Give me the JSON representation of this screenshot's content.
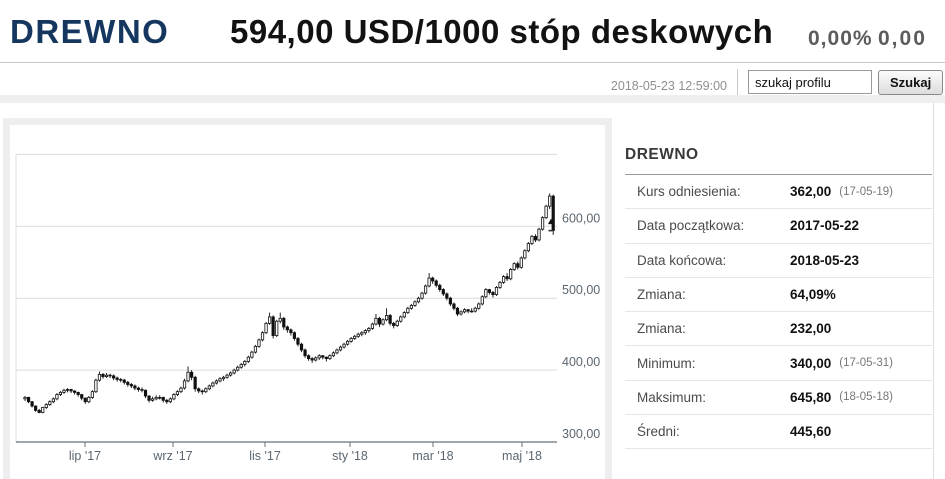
{
  "header": {
    "symbol": "DREWNO",
    "price_line": "594,00 USD/1000 stóp deskowych",
    "change_percent": "0,00%",
    "change_value": "0,00"
  },
  "subheader": {
    "timestamp": "2018-05-23 12:59:00",
    "search_value": "szukaj profilu",
    "search_button": "Szukaj"
  },
  "stats_panel": {
    "title": "DREWNO",
    "rows": [
      {
        "label": "Kurs odniesienia:",
        "value": "362,00",
        "note": "(17-05-19)"
      },
      {
        "label": "Data początkowa:",
        "value": "2017-05-22",
        "note": ""
      },
      {
        "label": "Data końcowa:",
        "value": "2018-05-23",
        "note": ""
      },
      {
        "label": "Zmiana:",
        "value": "64,09%",
        "note": ""
      },
      {
        "label": "Zmiana:",
        "value": "232,00",
        "note": ""
      },
      {
        "label": "Minimum:",
        "value": "340,00",
        "note": "(17-05-31)"
      },
      {
        "label": "Maksimum:",
        "value": "645,80",
        "note": "(18-05-18)"
      },
      {
        "label": "Średni:",
        "value": "445,60",
        "note": ""
      }
    ]
  },
  "chart_data": {
    "type": "candlestick",
    "title": "DREWNO daily price, 2017-05-22 to 2018-05-23",
    "unit": "USD/1000 stóp deskowych",
    "x_ticks": [
      "lip '17",
      "wrz '17",
      "lis '17",
      "sty '18",
      "mar '18",
      "maj '18"
    ],
    "y_axis": {
      "min": 300,
      "max": 700,
      "grid_extra": [
        700
      ]
    },
    "y_ticks": [
      {
        "value": 600,
        "label": "600,00"
      },
      {
        "value": 500,
        "label": "500,00"
      },
      {
        "value": 400,
        "label": "400,00"
      },
      {
        "value": 300,
        "label": "300,00"
      }
    ],
    "last_price": 594.0,
    "colors": {
      "up_fill": "#ffffff",
      "down_fill": "#111111",
      "outline": "#111111"
    },
    "candles": [
      [
        360,
        364,
        357,
        362
      ],
      [
        362,
        363,
        354,
        356
      ],
      [
        356,
        357,
        348,
        350
      ],
      [
        350,
        351,
        342,
        344
      ],
      [
        344,
        346,
        340,
        341
      ],
      [
        341,
        349,
        340,
        348
      ],
      [
        348,
        354,
        346,
        352
      ],
      [
        352,
        358,
        350,
        356
      ],
      [
        356,
        362,
        354,
        360
      ],
      [
        360,
        368,
        358,
        366
      ],
      [
        366,
        371,
        364,
        369
      ],
      [
        369,
        374,
        367,
        372
      ],
      [
        372,
        375,
        369,
        373
      ],
      [
        373,
        374,
        368,
        371
      ],
      [
        371,
        372,
        366,
        369
      ],
      [
        369,
        370,
        363,
        366
      ],
      [
        366,
        367,
        358,
        361
      ],
      [
        361,
        362,
        353,
        356
      ],
      [
        356,
        364,
        354,
        362
      ],
      [
        362,
        372,
        360,
        370
      ],
      [
        370,
        388,
        368,
        386
      ],
      [
        386,
        398,
        384,
        394
      ],
      [
        394,
        396,
        388,
        391
      ],
      [
        391,
        396,
        389,
        393
      ],
      [
        393,
        395,
        389,
        392
      ],
      [
        392,
        394,
        386,
        389
      ],
      [
        389,
        391,
        384,
        387
      ],
      [
        387,
        389,
        383,
        386
      ],
      [
        386,
        388,
        380,
        383
      ],
      [
        383,
        385,
        377,
        380
      ],
      [
        380,
        382,
        375,
        378
      ],
      [
        378,
        380,
        372,
        375
      ],
      [
        375,
        377,
        370,
        373
      ],
      [
        373,
        376,
        369,
        372
      ],
      [
        372,
        373,
        361,
        364
      ],
      [
        364,
        365,
        355,
        358
      ],
      [
        358,
        363,
        356,
        360
      ],
      [
        360,
        365,
        358,
        362
      ],
      [
        362,
        365,
        359,
        362
      ],
      [
        362,
        363,
        355,
        358
      ],
      [
        358,
        360,
        353,
        356
      ],
      [
        356,
        362,
        354,
        360
      ],
      [
        360,
        368,
        358,
        366
      ],
      [
        366,
        372,
        364,
        370
      ],
      [
        370,
        377,
        368,
        375
      ],
      [
        375,
        388,
        373,
        385
      ],
      [
        385,
        405,
        383,
        397
      ],
      [
        397,
        400,
        386,
        390
      ],
      [
        390,
        392,
        370,
        374
      ],
      [
        374,
        376,
        368,
        371
      ],
      [
        371,
        373,
        366,
        370
      ],
      [
        370,
        376,
        368,
        374
      ],
      [
        374,
        380,
        372,
        378
      ],
      [
        378,
        384,
        376,
        382
      ],
      [
        382,
        387,
        380,
        385
      ],
      [
        385,
        390,
        383,
        388
      ],
      [
        388,
        392,
        385,
        390
      ],
      [
        390,
        395,
        388,
        393
      ],
      [
        393,
        398,
        391,
        396
      ],
      [
        396,
        402,
        394,
        400
      ],
      [
        400,
        406,
        398,
        404
      ],
      [
        404,
        410,
        402,
        408
      ],
      [
        408,
        414,
        405,
        412
      ],
      [
        412,
        420,
        410,
        418
      ],
      [
        418,
        427,
        416,
        425
      ],
      [
        425,
        435,
        423,
        433
      ],
      [
        433,
        444,
        431,
        442
      ],
      [
        442,
        454,
        440,
        452
      ],
      [
        452,
        467,
        450,
        465
      ],
      [
        465,
        480,
        463,
        474
      ],
      [
        474,
        476,
        444,
        448
      ],
      [
        448,
        470,
        446,
        468
      ],
      [
        468,
        480,
        465,
        472
      ],
      [
        472,
        474,
        456,
        460
      ],
      [
        460,
        462,
        452,
        456
      ],
      [
        456,
        458,
        448,
        452
      ],
      [
        452,
        454,
        441,
        444
      ],
      [
        444,
        446,
        433,
        436
      ],
      [
        436,
        438,
        425,
        428
      ],
      [
        428,
        430,
        417,
        420
      ],
      [
        420,
        422,
        413,
        416
      ],
      [
        416,
        418,
        410,
        414
      ],
      [
        414,
        419,
        412,
        417
      ],
      [
        417,
        422,
        414,
        420
      ],
      [
        420,
        421,
        415,
        418
      ],
      [
        418,
        419,
        412,
        416
      ],
      [
        416,
        422,
        414,
        420
      ],
      [
        420,
        426,
        418,
        424
      ],
      [
        424,
        430,
        422,
        428
      ],
      [
        428,
        434,
        426,
        432
      ],
      [
        432,
        438,
        430,
        436
      ],
      [
        436,
        442,
        434,
        440
      ],
      [
        440,
        446,
        438,
        444
      ],
      [
        444,
        449,
        442,
        447
      ],
      [
        447,
        452,
        445,
        450
      ],
      [
        450,
        454,
        447,
        452
      ],
      [
        452,
        457,
        449,
        455
      ],
      [
        455,
        460,
        452,
        458
      ],
      [
        458,
        466,
        456,
        464
      ],
      [
        464,
        478,
        462,
        472
      ],
      [
        472,
        474,
        460,
        464
      ],
      [
        464,
        472,
        462,
        470
      ],
      [
        470,
        486,
        468,
        476
      ],
      [
        476,
        478,
        462,
        465
      ],
      [
        465,
        467,
        458,
        462
      ],
      [
        462,
        470,
        460,
        468
      ],
      [
        468,
        476,
        466,
        474
      ],
      [
        474,
        482,
        472,
        480
      ],
      [
        480,
        488,
        478,
        486
      ],
      [
        486,
        492,
        484,
        490
      ],
      [
        490,
        497,
        488,
        495
      ],
      [
        495,
        502,
        493,
        500
      ],
      [
        500,
        509,
        498,
        507
      ],
      [
        507,
        519,
        505,
        517
      ],
      [
        517,
        535,
        515,
        528
      ],
      [
        528,
        530,
        520,
        524
      ],
      [
        524,
        526,
        515,
        518
      ],
      [
        518,
        520,
        509,
        512
      ],
      [
        512,
        514,
        503,
        506
      ],
      [
        506,
        508,
        497,
        500
      ],
      [
        500,
        502,
        489,
        492
      ],
      [
        492,
        494,
        483,
        486
      ],
      [
        486,
        488,
        475,
        478
      ],
      [
        478,
        483,
        476,
        481
      ],
      [
        481,
        486,
        479,
        484
      ],
      [
        484,
        485,
        479,
        482
      ],
      [
        482,
        486,
        480,
        482
      ],
      [
        482,
        488,
        480,
        486
      ],
      [
        486,
        494,
        484,
        492
      ],
      [
        492,
        504,
        490,
        502
      ],
      [
        502,
        514,
        500,
        512
      ],
      [
        512,
        513,
        505,
        508
      ],
      [
        508,
        510,
        501,
        505
      ],
      [
        505,
        517,
        503,
        515
      ],
      [
        515,
        524,
        513,
        522
      ],
      [
        522,
        532,
        520,
        530
      ],
      [
        530,
        535,
        524,
        527
      ],
      [
        527,
        542,
        525,
        540
      ],
      [
        540,
        550,
        538,
        548
      ],
      [
        548,
        551,
        540,
        543
      ],
      [
        543,
        558,
        541,
        556
      ],
      [
        556,
        568,
        554,
        566
      ],
      [
        566,
        578,
        564,
        576
      ],
      [
        576,
        588,
        574,
        586
      ],
      [
        586,
        589,
        578,
        581
      ],
      [
        581,
        598,
        579,
        596
      ],
      [
        596,
        614,
        594,
        612
      ],
      [
        612,
        630,
        610,
        628
      ],
      [
        628,
        645.8,
        624,
        642
      ],
      [
        642,
        644,
        588,
        594
      ]
    ]
  }
}
